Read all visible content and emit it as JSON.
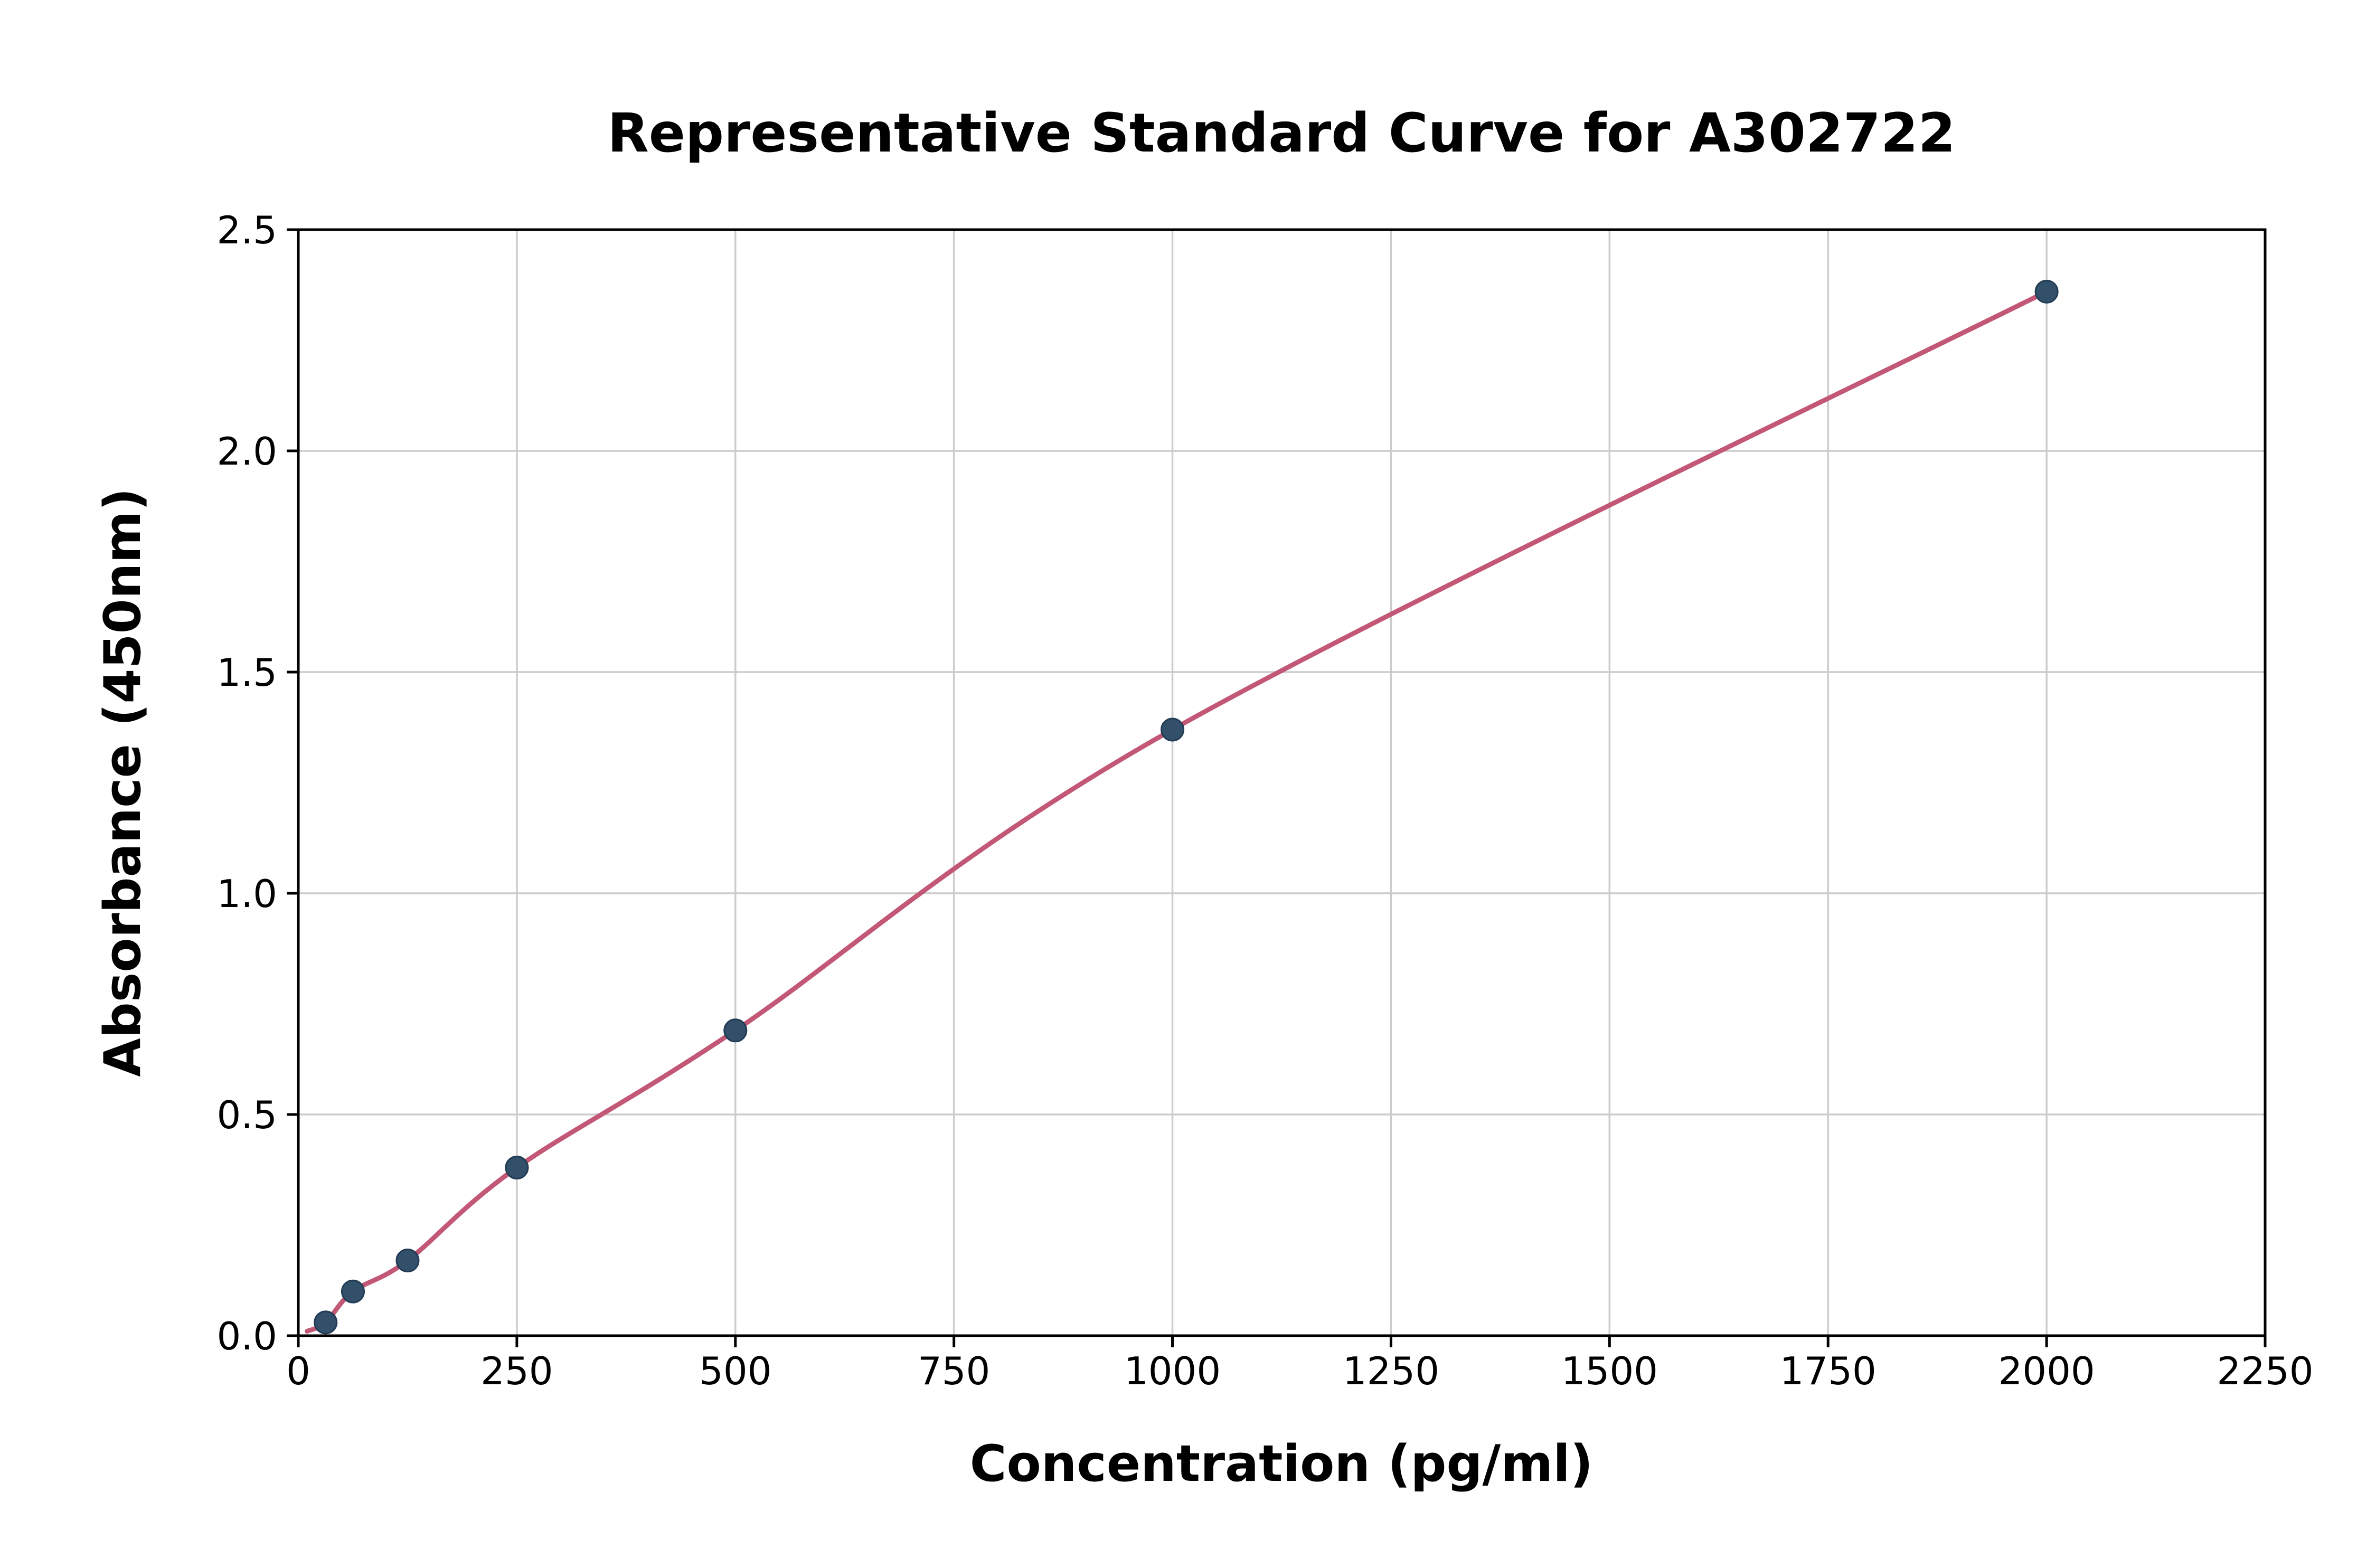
{
  "chart_data": {
    "type": "scatter",
    "title": "Representative Standard Curve for A302722",
    "xlabel": "Concentration (pg/ml)",
    "ylabel": "Absorbance (450nm)",
    "xlim": [
      0,
      2250
    ],
    "ylim": [
      0,
      2.5
    ],
    "grid": true,
    "legend": "none",
    "x_ticks": {
      "values": [
        0,
        250,
        500,
        750,
        1000,
        1250,
        1500,
        1750,
        2000,
        2250
      ],
      "labels": [
        "0",
        "250",
        "500",
        "750",
        "1000",
        "1250",
        "1500",
        "1750",
        "2000",
        "2250"
      ]
    },
    "y_ticks": {
      "values": [
        0.0,
        0.5,
        1.0,
        1.5,
        2.0,
        2.5
      ],
      "labels": [
        "0.0",
        "0.5",
        "1.0",
        "1.5",
        "2.0",
        "2.5"
      ]
    },
    "points": [
      [
        31.25,
        0.03
      ],
      [
        62.5,
        0.1
      ],
      [
        125,
        0.17
      ],
      [
        250,
        0.38
      ],
      [
        500,
        0.69
      ],
      [
        1000,
        1.37
      ],
      [
        2000,
        2.36
      ]
    ],
    "curve": [
      [
        10,
        0.01
      ],
      [
        31.25,
        0.03
      ],
      [
        62.5,
        0.1
      ],
      [
        125,
        0.17
      ],
      [
        250,
        0.38
      ],
      [
        500,
        0.69
      ],
      [
        1000,
        1.37
      ],
      [
        2000,
        2.36
      ]
    ],
    "colors": {
      "curve": "#c25876",
      "points_fill": "#33506b",
      "points_edge": "#223c55",
      "grid": "#cccccc",
      "spine": "#000000",
      "background": "#ffffff",
      "text": "#000000"
    }
  }
}
